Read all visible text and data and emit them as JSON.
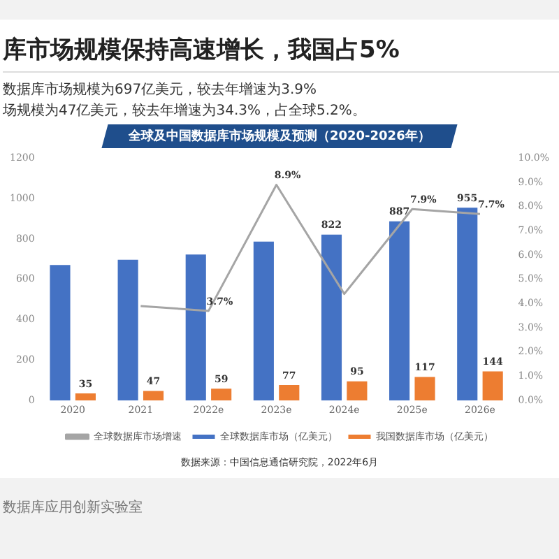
{
  "chart_data": {
    "type": "bar",
    "title": "库市场规模保持高速增长，我国占5%",
    "subtitle": "数据库市场规模为697亿美元，较去年增速为3.9%\n场规模为47亿美元，较去年增速为34.3%，占全球5.2%。",
    "xlabel": "全球及中国数据库市场规模及预测（2020-2026年）",
    "categories": [
      "2020",
      "2021",
      "2022e",
      "2023e",
      "2024e",
      "2025e",
      "2026e"
    ],
    "series": [
      {
        "name": "全球数据库市场（亿美元）",
        "color": "#4472c4",
        "values": [
          671,
          697,
          723,
          787,
          822,
          887,
          955
        ],
        "value_labels": [
          null,
          null,
          null,
          null,
          "822",
          "887",
          "955"
        ]
      },
      {
        "name": "我国数据库市场（亿美元）",
        "color": "#ed7d31",
        "values": [
          35,
          47,
          59,
          77,
          95,
          117,
          144
        ],
        "value_labels": [
          "35",
          "47",
          "59",
          "77",
          "95",
          "117",
          "144"
        ]
      },
      {
        "name": "全球数据库市场增速",
        "type": "line",
        "axis": "y2",
        "color": "#a5a5a5",
        "values": [
          null,
          3.9,
          3.7,
          8.9,
          4.4,
          7.9,
          7.7
        ],
        "value_labels": [
          null,
          null,
          "3.7%",
          "8.9%",
          null,
          "7.9%",
          "7.7%"
        ]
      }
    ],
    "ylim": [
      0,
      1200
    ],
    "yticks": [
      0,
      200,
      400,
      600,
      800,
      1000,
      1200
    ],
    "y2lim": [
      0,
      10
    ],
    "y2ticks": [
      {
        "value": 0,
        "label": "0.0%"
      },
      {
        "value": 1,
        "label": "1.0%"
      },
      {
        "value": 2,
        "label": "2.0%"
      },
      {
        "value": 3,
        "label": "3.0%"
      },
      {
        "value": 4,
        "label": "4.0%"
      },
      {
        "value": 5,
        "label": "5.0%"
      },
      {
        "value": 6,
        "label": "6.0%"
      },
      {
        "value": 7,
        "label": "7.0%"
      },
      {
        "value": 8,
        "label": "8.0%"
      },
      {
        "value": 9,
        "label": "9.0%"
      },
      {
        "value": 10,
        "label": "10.0%"
      }
    ],
    "grid": false,
    "legend": "bottom",
    "marker": "none",
    "annotations": [
      "数据来源：中国信息通信研究院，2022年6月",
      "数据库应用创新实验室"
    ]
  }
}
